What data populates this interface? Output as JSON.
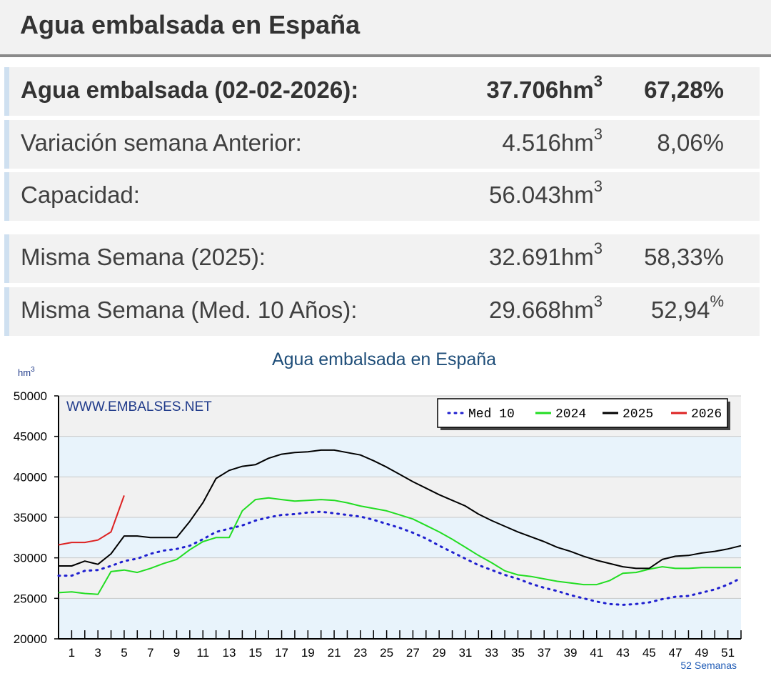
{
  "header": {
    "title": "Agua embalsada en España"
  },
  "summary": [
    {
      "label": "Agua embalsada (02-02-2026):",
      "value": "37.706",
      "unit": "hm",
      "unit_sup": "3",
      "pct": "67,28",
      "pct_suffix": "%",
      "bold": true
    },
    {
      "label": "Variación semana Anterior:",
      "value": "4.516",
      "unit": "hm",
      "unit_sup": "3",
      "pct": "8,06",
      "pct_suffix": "%"
    },
    {
      "label": "Capacidad:",
      "value": "56.043",
      "unit": "hm",
      "unit_sup": "3",
      "pct": "",
      "pct_suffix": ""
    },
    {
      "label": "Misma Semana (2025):",
      "value": "32.691",
      "unit": "hm",
      "unit_sup": "3",
      "pct": "58,33",
      "pct_suffix": "%"
    },
    {
      "label": "Misma Semana (Med. 10 Años):",
      "value": "29.668",
      "unit": "hm",
      "unit_sup": "3",
      "pct": "52,94",
      "pct_suffix_sup": "%"
    }
  ],
  "chart_data": {
    "type": "line",
    "title": "Agua embalsada en España",
    "ylabel": "hm",
    "ylabel_sup": "3",
    "xlabel": "52 Semanas",
    "watermark": "WWW.EMBALSES.NET",
    "ylim": [
      20000,
      50000
    ],
    "xlim": [
      0,
      52
    ],
    "yticks": [
      20000,
      25000,
      30000,
      35000,
      40000,
      45000,
      50000
    ],
    "xticks": [
      1,
      3,
      5,
      7,
      9,
      11,
      13,
      15,
      17,
      19,
      21,
      23,
      25,
      27,
      29,
      31,
      33,
      35,
      37,
      39,
      41,
      43,
      45,
      47,
      49,
      51
    ],
    "legend_position": "top-right",
    "series": [
      {
        "name": "Med 10",
        "color": "#1f1fcf",
        "style": "dotted",
        "x": [
          0,
          1,
          2,
          3,
          4,
          5,
          6,
          7,
          8,
          9,
          10,
          11,
          12,
          13,
          14,
          15,
          16,
          17,
          18,
          19,
          20,
          21,
          22,
          23,
          24,
          25,
          26,
          27,
          28,
          29,
          30,
          31,
          32,
          33,
          34,
          35,
          36,
          37,
          38,
          39,
          40,
          41,
          42,
          43,
          44,
          45,
          46,
          47,
          48,
          49,
          50,
          51,
          52
        ],
        "values": [
          27800,
          27800,
          28400,
          28500,
          29000,
          29600,
          29900,
          30500,
          30900,
          31100,
          31500,
          32300,
          33200,
          33600,
          34000,
          34600,
          35000,
          35300,
          35400,
          35600,
          35700,
          35500,
          35300,
          35100,
          34700,
          34200,
          33700,
          33100,
          32400,
          31500,
          30700,
          29900,
          29100,
          28500,
          27900,
          27400,
          26800,
          26300,
          25900,
          25400,
          25000,
          24600,
          24300,
          24200,
          24300,
          24500,
          24900,
          25200,
          25300,
          25700,
          26100,
          26700,
          27500
        ]
      },
      {
        "name": "2024",
        "color": "#22dd22",
        "style": "solid",
        "x": [
          0,
          1,
          2,
          3,
          4,
          5,
          6,
          7,
          8,
          9,
          10,
          11,
          12,
          13,
          14,
          15,
          16,
          17,
          18,
          19,
          20,
          21,
          22,
          23,
          24,
          25,
          26,
          27,
          28,
          29,
          30,
          31,
          32,
          33,
          34,
          35,
          36,
          37,
          38,
          39,
          40,
          41,
          42,
          43,
          44,
          45,
          46,
          47,
          48,
          49,
          50,
          51,
          52
        ],
        "values": [
          25700,
          25800,
          25600,
          25500,
          28300,
          28500,
          28200,
          28700,
          29300,
          29800,
          31000,
          32000,
          32500,
          32500,
          35800,
          37200,
          37400,
          37200,
          37000,
          37100,
          37200,
          37100,
          36800,
          36400,
          36100,
          35800,
          35300,
          34800,
          34000,
          33200,
          32300,
          31300,
          30300,
          29400,
          28400,
          27900,
          27700,
          27400,
          27100,
          26900,
          26700,
          26700,
          27200,
          28100,
          28200,
          28600,
          28900,
          28700,
          28700,
          28800,
          28800,
          28800,
          28800
        ]
      },
      {
        "name": "2025",
        "color": "#000000",
        "style": "solid",
        "x": [
          0,
          1,
          2,
          3,
          4,
          5,
          6,
          7,
          8,
          9,
          10,
          11,
          12,
          13,
          14,
          15,
          16,
          17,
          18,
          19,
          20,
          21,
          22,
          23,
          24,
          25,
          26,
          27,
          28,
          29,
          30,
          31,
          32,
          33,
          34,
          35,
          36,
          37,
          38,
          39,
          40,
          41,
          42,
          43,
          44,
          45,
          46,
          47,
          48,
          49,
          50,
          51,
          52
        ],
        "values": [
          29000,
          29000,
          29600,
          29200,
          30500,
          32700,
          32700,
          32500,
          32500,
          32500,
          34500,
          36800,
          39800,
          40800,
          41300,
          41500,
          42300,
          42800,
          43000,
          43100,
          43300,
          43300,
          43000,
          42700,
          42000,
          41200,
          40300,
          39400,
          38600,
          37800,
          37100,
          36400,
          35400,
          34600,
          33900,
          33200,
          32600,
          32000,
          31300,
          30800,
          30200,
          29700,
          29300,
          28900,
          28700,
          28700,
          29800,
          30200,
          30300,
          30600,
          30800,
          31100,
          31500
        ]
      },
      {
        "name": "2026",
        "color": "#dd2222",
        "style": "solid",
        "x": [
          0,
          1,
          2,
          3,
          4,
          5
        ],
        "values": [
          31600,
          31900,
          31900,
          32200,
          33200,
          37700
        ]
      }
    ]
  }
}
